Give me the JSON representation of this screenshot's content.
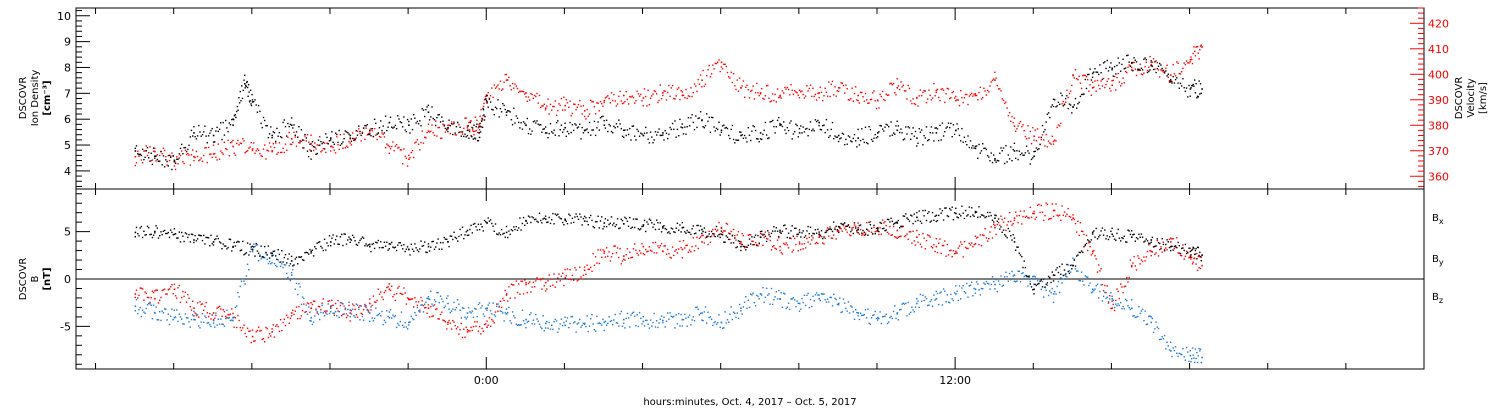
{
  "chart_data": [
    {
      "type": "scatter",
      "panel": "top",
      "ylabel_left": [
        "DSCOVR",
        "Ion  Density",
        "[cm⁻³]"
      ],
      "ylabel_right": [
        "DSCOVR",
        "Velocity",
        "[km/s]"
      ],
      "ylim_left": [
        3.3,
        10.3
      ],
      "ylim_right": [
        355,
        426
      ],
      "yticks_left": [
        4,
        5,
        6,
        7,
        8,
        9,
        10
      ],
      "yticks_right": [
        360,
        370,
        380,
        390,
        400,
        410,
        420
      ],
      "series": [
        {
          "name": "Ion Density",
          "axis": "left",
          "color": "#000000",
          "x": [
            -9.0,
            -8.5,
            -8.0,
            -7.5,
            -7.0,
            -6.5,
            -6.2,
            -6.0,
            -5.5,
            -5.0,
            -4.5,
            -4.0,
            -3.5,
            -3.0,
            -2.5,
            -2.0,
            -1.5,
            -1.0,
            -0.5,
            -0.2,
            0.0,
            0.5,
            1.0,
            1.5,
            2.0,
            2.5,
            3.0,
            3.5,
            4.0,
            4.5,
            5.0,
            5.5,
            6.0,
            6.5,
            7.0,
            7.5,
            8.0,
            8.5,
            9.0,
            9.5,
            10.0,
            10.5,
            11.0,
            11.5,
            12.0,
            12.5,
            13.0,
            13.5,
            14.0,
            14.5,
            15.0,
            15.5,
            16.0,
            16.5,
            17.0,
            17.5,
            18.0,
            18.3
          ],
          "values": [
            4.8,
            4.6,
            4.4,
            5.5,
            5.4,
            5.8,
            7.4,
            6.7,
            5.4,
            5.8,
            4.8,
            5.3,
            5.4,
            5.6,
            5.9,
            5.8,
            6.3,
            5.7,
            5.6,
            5.5,
            6.7,
            6.3,
            5.8,
            5.5,
            5.7,
            5.6,
            5.8,
            5.6,
            5.4,
            5.5,
            5.7,
            6.0,
            5.6,
            5.4,
            5.5,
            5.8,
            5.5,
            5.9,
            5.4,
            5.3,
            5.5,
            5.6,
            5.3,
            5.5,
            5.6,
            4.9,
            4.5,
            4.8,
            4.6,
            6.8,
            6.5,
            7.8,
            8.0,
            8.2,
            8.1,
            7.5,
            7.2,
            7.2
          ]
        },
        {
          "name": "Velocity",
          "axis": "right",
          "color": "#ff0000",
          "x": [
            -9.0,
            -8.5,
            -8.0,
            -7.5,
            -7.0,
            -6.5,
            -6.0,
            -5.5,
            -5.0,
            -4.5,
            -4.0,
            -3.5,
            -3.0,
            -2.5,
            -2.0,
            -1.5,
            -1.0,
            -0.5,
            -0.2,
            0.0,
            0.5,
            1.0,
            1.5,
            2.0,
            2.5,
            3.0,
            3.5,
            4.0,
            4.5,
            5.0,
            5.5,
            6.0,
            6.5,
            7.0,
            7.5,
            8.0,
            8.5,
            9.0,
            9.5,
            10.0,
            10.5,
            11.0,
            11.5,
            12.0,
            12.5,
            13.0,
            13.5,
            14.0,
            14.5,
            15.0,
            15.5,
            16.0,
            16.5,
            17.0,
            17.5,
            18.0,
            18.3
          ],
          "values": [
            368,
            370,
            366,
            368,
            369,
            372,
            371,
            370,
            375,
            373,
            372,
            375,
            377,
            372,
            367,
            378,
            379,
            380,
            380,
            392,
            398,
            393,
            387,
            388,
            386,
            390,
            392,
            391,
            393,
            392,
            398,
            405,
            395,
            393,
            392,
            394,
            393,
            395,
            392,
            390,
            395,
            391,
            394,
            390,
            392,
            398,
            380,
            376,
            374,
            400,
            395,
            396,
            402,
            404,
            400,
            406,
            411
          ]
        }
      ]
    },
    {
      "type": "scatter",
      "panel": "bottom",
      "ylabel_left": [
        "DSCOVR",
        "B",
        "[nT]"
      ],
      "ylim": [
        -9.5,
        9.5
      ],
      "yticks": [
        -5,
        0,
        5
      ],
      "zero_line": true,
      "series": [
        {
          "name": "B",
          "sub": "x",
          "color": "#000000",
          "x": [
            -9.0,
            -8.5,
            -8.0,
            -7.5,
            -7.0,
            -6.5,
            -6.0,
            -5.5,
            -5.0,
            -4.5,
            -4.0,
            -3.5,
            -3.0,
            -2.5,
            -2.0,
            -1.5,
            -1.0,
            -0.5,
            0.0,
            0.5,
            1.0,
            1.5,
            2.0,
            2.5,
            3.0,
            3.5,
            4.0,
            4.5,
            5.0,
            5.5,
            6.0,
            6.5,
            7.0,
            7.5,
            8.0,
            8.5,
            9.0,
            9.5,
            10.0,
            10.5,
            11.0,
            11.5,
            12.0,
            12.5,
            13.0,
            13.5,
            14.0,
            14.5,
            15.0,
            15.5,
            16.0,
            16.5,
            17.0,
            17.5,
            18.0,
            18.3
          ],
          "values": [
            5.0,
            5.1,
            4.8,
            4.2,
            4.0,
            3.5,
            3.2,
            2.8,
            2.0,
            3.0,
            4.0,
            4.3,
            3.5,
            3.8,
            3.2,
            3.5,
            4.0,
            5.2,
            6.0,
            5.0,
            6.2,
            6.4,
            6.3,
            6.2,
            6.0,
            5.9,
            5.8,
            5.6,
            5.5,
            5.3,
            4.8,
            3.5,
            4.5,
            5.2,
            5.0,
            4.8,
            5.6,
            5.3,
            5.4,
            6.0,
            6.6,
            6.8,
            7.0,
            7.2,
            6.5,
            4.0,
            -1.0,
            0.5,
            1.5,
            5.0,
            4.8,
            4.5,
            4.2,
            3.5,
            3.0,
            2.6
          ]
        },
        {
          "name": "B",
          "sub": "y",
          "color": "#1a7ad4",
          "x": [
            -9.0,
            -8.5,
            -8.0,
            -7.5,
            -7.0,
            -6.5,
            -6.0,
            -5.5,
            -5.0,
            -4.5,
            -4.0,
            -3.5,
            -3.0,
            -2.5,
            -2.0,
            -1.5,
            -1.0,
            -0.5,
            0.0,
            0.5,
            1.0,
            1.5,
            2.0,
            2.5,
            3.0,
            3.5,
            4.0,
            4.5,
            5.0,
            5.5,
            6.0,
            6.5,
            7.0,
            7.5,
            8.0,
            8.5,
            9.0,
            9.5,
            10.0,
            10.5,
            11.0,
            11.5,
            12.0,
            12.5,
            13.0,
            13.5,
            14.0,
            14.5,
            15.0,
            15.5,
            16.0,
            16.5,
            17.0,
            17.5,
            18.0,
            18.3
          ],
          "values": [
            -2.8,
            -3.5,
            -4.0,
            -4.2,
            -4.3,
            -4.0,
            3.0,
            2.5,
            0.5,
            -4.0,
            -3.0,
            -3.2,
            -3.5,
            -4.0,
            -4.5,
            -2.0,
            -2.5,
            -3.5,
            -3.0,
            -3.6,
            -4.2,
            -4.6,
            -4.8,
            -4.6,
            -4.5,
            -4.2,
            -4.4,
            -4.3,
            -4.2,
            -3.5,
            -4.5,
            -3.0,
            -1.5,
            -2.0,
            -2.5,
            -2.0,
            -2.5,
            -3.5,
            -4.0,
            -3.5,
            -2.5,
            -2.0,
            -1.5,
            -1.0,
            -0.5,
            0.5,
            -0.5,
            -1.5,
            1.5,
            -1.0,
            -2.0,
            -3.0,
            -4.5,
            -7.5,
            -8.0,
            -8.2
          ]
        },
        {
          "name": "B",
          "sub": "z",
          "color": "#ff0000",
          "x": [
            -9.0,
            -8.5,
            -8.0,
            -7.5,
            -7.0,
            -6.5,
            -6.0,
            -5.5,
            -5.0,
            -4.5,
            -4.0,
            -3.5,
            -3.0,
            -2.5,
            -2.0,
            -1.5,
            -1.0,
            -0.5,
            0.0,
            0.5,
            1.0,
            1.5,
            2.0,
            2.5,
            3.0,
            3.5,
            4.0,
            4.5,
            5.0,
            5.5,
            6.0,
            6.5,
            7.0,
            7.5,
            8.0,
            8.5,
            9.0,
            9.5,
            10.0,
            10.5,
            11.0,
            11.5,
            12.0,
            12.5,
            13.0,
            13.5,
            14.0,
            14.5,
            15.0,
            15.5,
            16.0,
            16.5,
            17.0,
            17.5,
            18.0,
            18.3
          ],
          "values": [
            -1.5,
            -2.0,
            -1.0,
            -3.0,
            -3.5,
            -4.0,
            -6.0,
            -5.5,
            -3.5,
            -3.0,
            -2.8,
            -3.5,
            -2.5,
            -1.0,
            -2.0,
            -3.0,
            -4.5,
            -5.5,
            -5.0,
            -1.5,
            -0.5,
            -0.3,
            0.2,
            1.0,
            3.0,
            2.5,
            3.5,
            3.0,
            3.2,
            4.0,
            5.5,
            4.0,
            4.5,
            3.5,
            3.8,
            4.5,
            5.0,
            5.5,
            5.5,
            5.2,
            4.5,
            3.5,
            3.0,
            3.8,
            5.5,
            6.5,
            7.0,
            7.3,
            6.5,
            3.0,
            -3.0,
            1.5,
            3.0,
            4.0,
            2.5,
            1.5
          ]
        }
      ]
    }
  ],
  "axis": {
    "x_range_hours": [
      -10.5,
      24.0
    ],
    "major_tick_hours": [
      0,
      12
    ],
    "major_tick_labels": [
      "0:00",
      "12:00"
    ],
    "minor_tick_step_hours": 2,
    "xlabel": "hours:minutes, Oct.  4, 2017 – Oct.  5, 2017"
  },
  "legend_bottom": [
    {
      "name": "B",
      "sub": "x",
      "color": "#000000"
    },
    {
      "name": "B",
      "sub": "y",
      "color": "#1a7ad4"
    },
    {
      "name": "B",
      "sub": "z",
      "color": "#ff0000"
    }
  ]
}
